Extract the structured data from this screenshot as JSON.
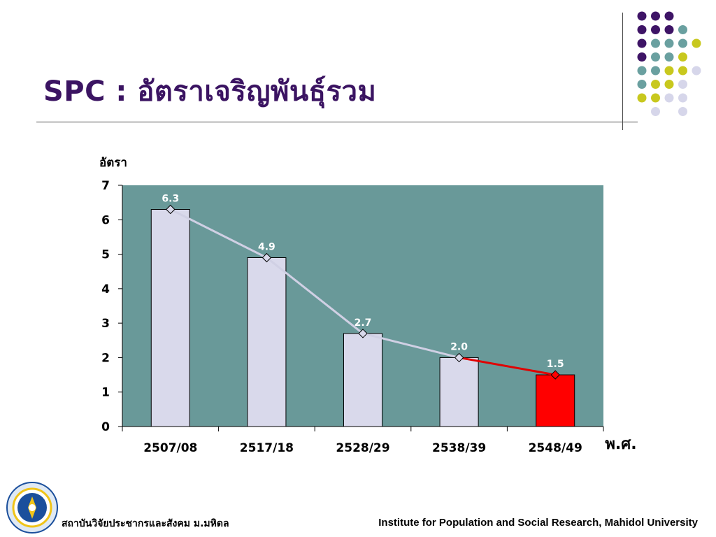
{
  "slide": {
    "title": "SPC : อัตราเจริญพันธุ์รวม",
    "footer_left": "สถาบันวิจัยประชากรและสังคม ม.มหิดล",
    "footer_right": "Institute for Population and Social Research, Mahidol University",
    "logo_text": "สถาบันวิจัยประชากรและสังคม"
  },
  "colors": {
    "title": "#3b1462",
    "plot_bg": "#699999",
    "bar_fill": "#d9d9eb",
    "bar_highlight": "#ff0000",
    "line": "#d0d0e4",
    "line_highlight": "#e00000",
    "dot_purple": "#3e1466",
    "dot_teal": "#6aa0a0",
    "dot_yellow": "#c8c81e",
    "dot_lavender": "#d6d6ea"
  },
  "chart_data": {
    "type": "bar",
    "title": "",
    "ylabel": "อัตรา",
    "xlabel": "พ.ศ.",
    "categories": [
      "2507/08",
      "2517/18",
      "2528/29",
      "2538/39",
      "2548/49"
    ],
    "values": [
      6.3,
      4.9,
      2.7,
      2.0,
      1.5
    ],
    "data_labels": [
      "6.3",
      "4.9",
      "2.7",
      "2.0",
      "1.5"
    ],
    "highlight_index": 4,
    "overlay_line": true,
    "ylim": [
      0,
      7
    ],
    "yticks": [
      "0",
      "1",
      "2",
      "3",
      "4",
      "5",
      "6",
      "7"
    ],
    "grid": false,
    "legend": "none"
  }
}
